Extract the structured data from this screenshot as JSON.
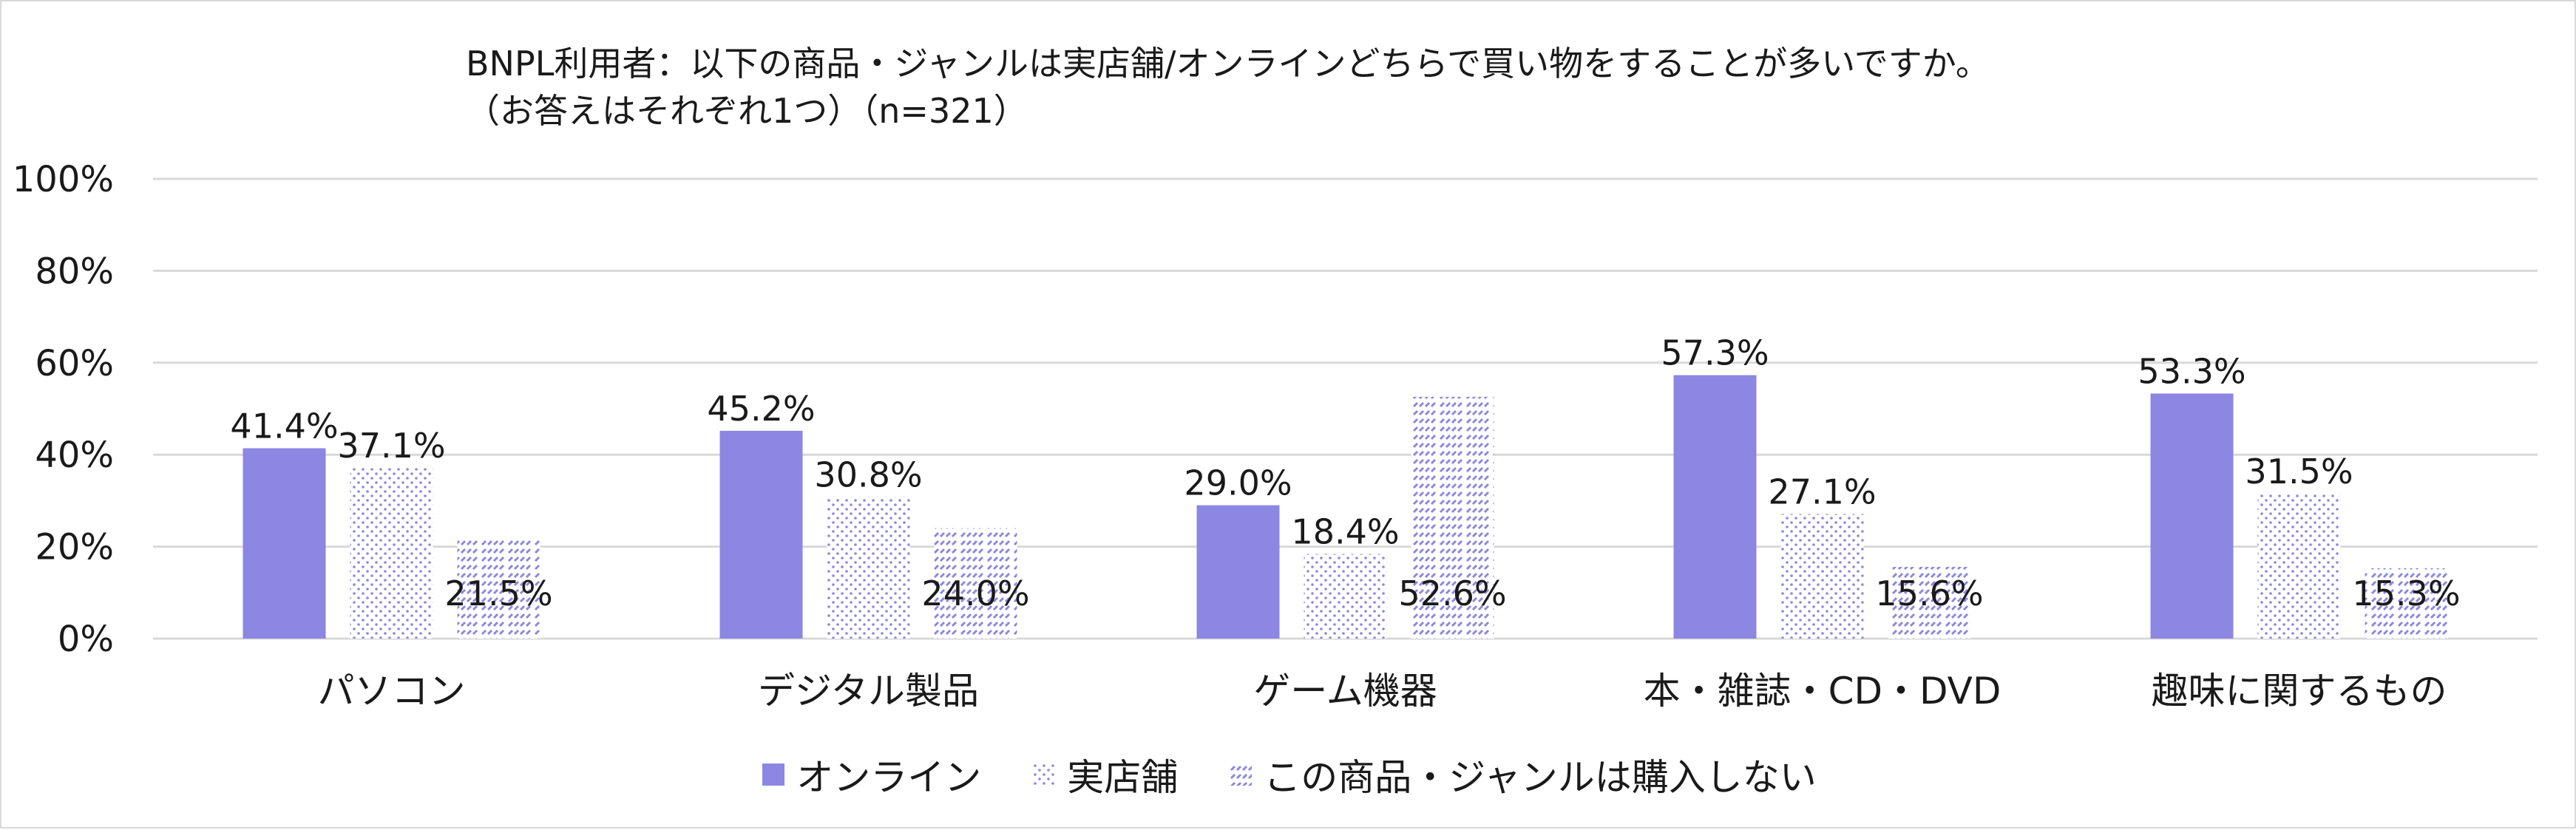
{
  "chart_data": {
    "type": "bar",
    "title_line1": "BNPL利用者：以下の商品・ジャンルは実店舗/オンラインどちらで買い物をすることが多いですか。",
    "title_line2": "（お答えはそれぞれ1つ）（n=321）",
    "categories": [
      "パソコン",
      "デジタル製品",
      "ゲーム機器",
      "本・雑誌・CD・DVD",
      "趣味に関するもの"
    ],
    "series": [
      {
        "name": "オンライン",
        "values": [
          41.4,
          45.2,
          29.0,
          57.3,
          53.3
        ],
        "labels": [
          "41.4%",
          "45.2%",
          "29.0%",
          "57.3%",
          "53.3%"
        ],
        "color": "#8b87e2",
        "pattern": "solid"
      },
      {
        "name": "実店舗",
        "values": [
          37.1,
          30.8,
          18.4,
          27.1,
          31.5
        ],
        "labels": [
          "37.1%",
          "30.8%",
          "18.4%",
          "27.1%",
          "31.5%"
        ],
        "color": "#8b87e2",
        "pattern": "dots"
      },
      {
        "name": "この商品・ジャンルは購入しない",
        "values": [
          21.5,
          24.0,
          52.6,
          15.6,
          15.3
        ],
        "labels": [
          "21.5%",
          "24.0%",
          "52.6%",
          "15.6%",
          "15.3%"
        ],
        "color": "#8b87e2",
        "pattern": "dashes"
      }
    ],
    "y_ticks": [
      "0%",
      "20%",
      "40%",
      "60%",
      "80%",
      "100%"
    ],
    "ylim": [
      0,
      100
    ],
    "grid": true,
    "legend_position": "bottom"
  }
}
